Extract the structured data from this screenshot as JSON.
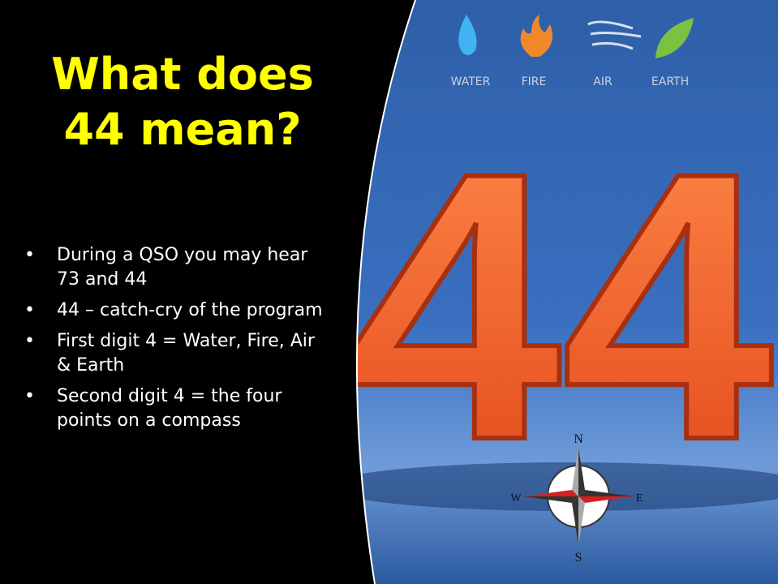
{
  "title": "What does 44 mean?",
  "bullets": [
    "During a QSO you may hear 73 and 44",
    "44 – catch-cry of the program",
    "First digit 4 = Water, Fire, Air & Earth",
    "Second digit 4 = the four points on a compass"
  ],
  "image": {
    "elements": [
      "WATER",
      "FIRE",
      "AIR",
      "EARTH"
    ],
    "number": "44",
    "compass": {
      "north": "N",
      "east": "E",
      "south": "S",
      "west": "W"
    }
  }
}
